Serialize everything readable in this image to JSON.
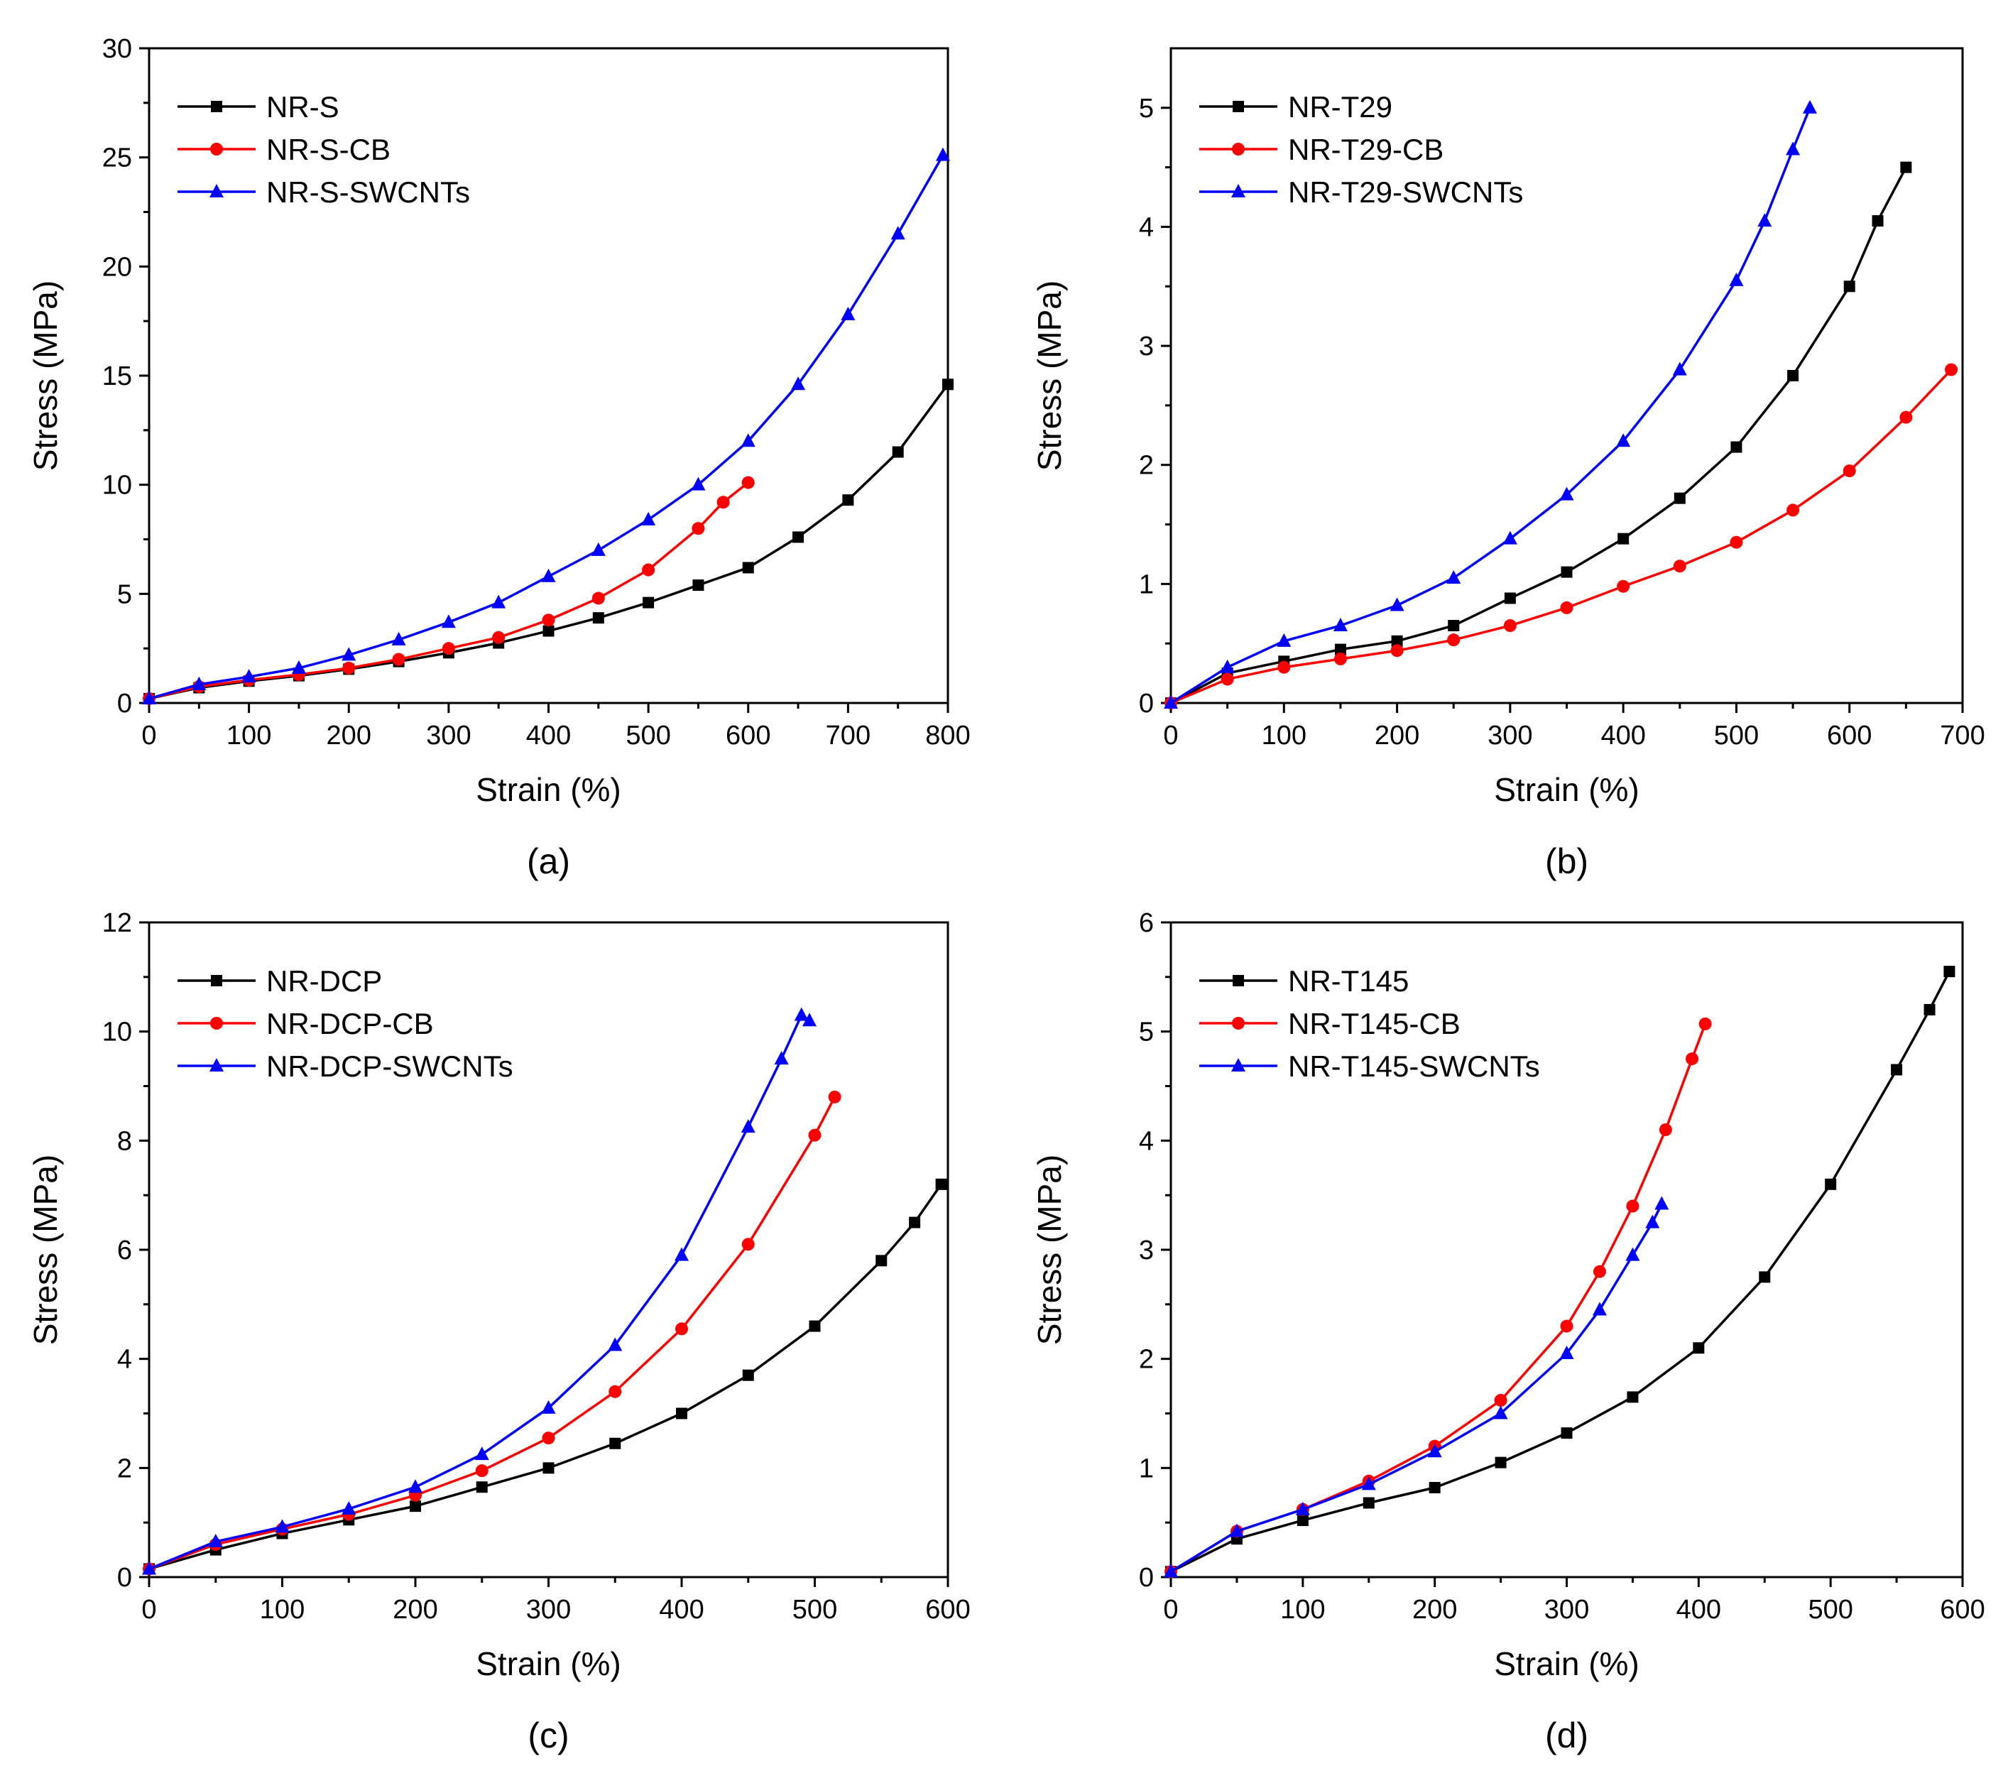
{
  "chart_data": [
    {
      "id": "a",
      "type": "line",
      "panel_label": "(a)",
      "xlabel": "Strain (%)",
      "ylabel": "Stress (MPa)",
      "xlim": [
        0,
        800
      ],
      "ylim": [
        0,
        30
      ],
      "xticks": [
        0,
        100,
        200,
        300,
        400,
        500,
        600,
        700,
        800
      ],
      "yticks": [
        0,
        5,
        10,
        15,
        20,
        25,
        30
      ],
      "legend_position": "top-left",
      "series": [
        {
          "name": "NR-S",
          "color": "#000000",
          "marker": "square",
          "x": [
            0,
            50,
            100,
            150,
            200,
            250,
            300,
            350,
            400,
            450,
            500,
            550,
            600,
            650,
            700,
            750,
            800
          ],
          "y": [
            0.2,
            0.7,
            1.0,
            1.25,
            1.55,
            1.9,
            2.3,
            2.75,
            3.3,
            3.9,
            4.6,
            5.4,
            6.2,
            7.6,
            9.3,
            11.5,
            14.6
          ]
        },
        {
          "name": "NR-S-CB",
          "color": "#ff0000",
          "marker": "circle",
          "x": [
            0,
            50,
            100,
            150,
            200,
            250,
            300,
            350,
            400,
            450,
            500,
            550,
            575,
            600
          ],
          "y": [
            0.2,
            0.75,
            1.05,
            1.3,
            1.6,
            2.0,
            2.5,
            3.0,
            3.8,
            4.8,
            6.1,
            8.0,
            9.2,
            10.1
          ]
        },
        {
          "name": "NR-S-SWCNTs",
          "color": "#0000ff",
          "marker": "triangle",
          "x": [
            0,
            50,
            100,
            150,
            200,
            250,
            300,
            350,
            400,
            450,
            500,
            550,
            600,
            650,
            700,
            750,
            795
          ],
          "y": [
            0.2,
            0.85,
            1.2,
            1.6,
            2.2,
            2.9,
            3.7,
            4.6,
            5.8,
            7.0,
            8.4,
            10.0,
            12.0,
            14.6,
            17.8,
            21.5,
            25.1
          ]
        }
      ]
    },
    {
      "id": "b",
      "type": "line",
      "panel_label": "(b)",
      "xlabel": "Strain (%)",
      "ylabel": "Stress (MPa)",
      "xlim": [
        0,
        700
      ],
      "ylim": [
        0,
        5.5
      ],
      "xticks": [
        0,
        100,
        200,
        300,
        400,
        500,
        600,
        700
      ],
      "yticks": [
        0,
        1,
        2,
        3,
        4,
        5
      ],
      "legend_position": "top-left",
      "series": [
        {
          "name": "NR-T29",
          "color": "#000000",
          "marker": "square",
          "x": [
            0,
            50,
            100,
            150,
            200,
            250,
            300,
            350,
            400,
            450,
            500,
            550,
            600,
            625,
            650
          ],
          "y": [
            0.0,
            0.25,
            0.35,
            0.45,
            0.52,
            0.65,
            0.88,
            1.1,
            1.38,
            1.72,
            2.15,
            2.75,
            3.5,
            4.05,
            4.5
          ]
        },
        {
          "name": "NR-T29-CB",
          "color": "#ff0000",
          "marker": "circle",
          "x": [
            0,
            50,
            100,
            150,
            200,
            250,
            300,
            350,
            400,
            450,
            500,
            550,
            600,
            650,
            690
          ],
          "y": [
            0.0,
            0.2,
            0.3,
            0.37,
            0.44,
            0.53,
            0.65,
            0.8,
            0.98,
            1.15,
            1.35,
            1.62,
            1.95,
            2.4,
            2.8
          ]
        },
        {
          "name": "NR-T29-SWCNTs",
          "color": "#0000ff",
          "marker": "triangle",
          "x": [
            0,
            50,
            100,
            150,
            200,
            250,
            300,
            350,
            400,
            450,
            500,
            525,
            550,
            565
          ],
          "y": [
            0.0,
            0.3,
            0.52,
            0.65,
            0.82,
            1.05,
            1.38,
            1.75,
            2.2,
            2.8,
            3.55,
            4.05,
            4.65,
            5.0
          ]
        }
      ]
    },
    {
      "id": "c",
      "type": "line",
      "panel_label": "(c)",
      "xlabel": "Strain (%)",
      "ylabel": "Stress (MPa)",
      "xlim": [
        0,
        600
      ],
      "ylim": [
        0,
        12
      ],
      "xticks": [
        0,
        100,
        200,
        300,
        400,
        500,
        600
      ],
      "yticks": [
        0,
        2,
        4,
        6,
        8,
        10,
        12
      ],
      "legend_position": "top-left",
      "series": [
        {
          "name": "NR-DCP",
          "color": "#000000",
          "marker": "square",
          "x": [
            0,
            50,
            100,
            150,
            200,
            250,
            300,
            350,
            400,
            450,
            500,
            550,
            575,
            595
          ],
          "y": [
            0.15,
            0.5,
            0.8,
            1.05,
            1.3,
            1.65,
            2.0,
            2.45,
            3.0,
            3.7,
            4.6,
            5.8,
            6.5,
            7.2
          ]
        },
        {
          "name": "NR-DCP-CB",
          "color": "#ff0000",
          "marker": "circle",
          "x": [
            0,
            50,
            100,
            150,
            200,
            250,
            300,
            350,
            400,
            450,
            500,
            515
          ],
          "y": [
            0.15,
            0.6,
            0.88,
            1.15,
            1.5,
            1.95,
            2.55,
            3.4,
            4.55,
            6.1,
            8.1,
            8.8
          ]
        },
        {
          "name": "NR-DCP-SWCNTs",
          "color": "#0000ff",
          "marker": "triangle",
          "x": [
            0,
            50,
            100,
            150,
            200,
            250,
            300,
            350,
            400,
            450,
            475,
            490,
            496
          ],
          "y": [
            0.15,
            0.65,
            0.92,
            1.25,
            1.65,
            2.25,
            3.1,
            4.25,
            5.9,
            8.25,
            9.5,
            10.3,
            10.2
          ]
        }
      ]
    },
    {
      "id": "d",
      "type": "line",
      "panel_label": "(d)",
      "xlabel": "Strain (%)",
      "ylabel": "Stress (MPa)",
      "xlim": [
        0,
        600
      ],
      "ylim": [
        0,
        6
      ],
      "xticks": [
        0,
        100,
        200,
        300,
        400,
        500,
        600
      ],
      "yticks": [
        0,
        1,
        2,
        3,
        4,
        5,
        6
      ],
      "legend_position": "top-left",
      "series": [
        {
          "name": "NR-T145",
          "color": "#000000",
          "marker": "square",
          "x": [
            0,
            50,
            100,
            150,
            200,
            250,
            300,
            350,
            400,
            450,
            500,
            550,
            575,
            590
          ],
          "y": [
            0.05,
            0.35,
            0.52,
            0.68,
            0.82,
            1.05,
            1.32,
            1.65,
            2.1,
            2.75,
            3.6,
            4.65,
            5.2,
            5.55
          ]
        },
        {
          "name": "NR-T145-CB",
          "color": "#ff0000",
          "marker": "circle",
          "x": [
            0,
            50,
            100,
            150,
            200,
            250,
            300,
            325,
            350,
            375,
            395,
            405
          ],
          "y": [
            0.05,
            0.42,
            0.62,
            0.88,
            1.2,
            1.62,
            2.3,
            2.8,
            3.4,
            4.1,
            4.75,
            5.07
          ]
        },
        {
          "name": "NR-T145-SWCNTs",
          "color": "#0000ff",
          "marker": "triangle",
          "x": [
            0,
            50,
            100,
            150,
            200,
            250,
            300,
            325,
            350,
            365,
            372
          ],
          "y": [
            0.05,
            0.42,
            0.62,
            0.85,
            1.15,
            1.5,
            2.05,
            2.45,
            2.95,
            3.25,
            3.42
          ]
        }
      ]
    }
  ]
}
